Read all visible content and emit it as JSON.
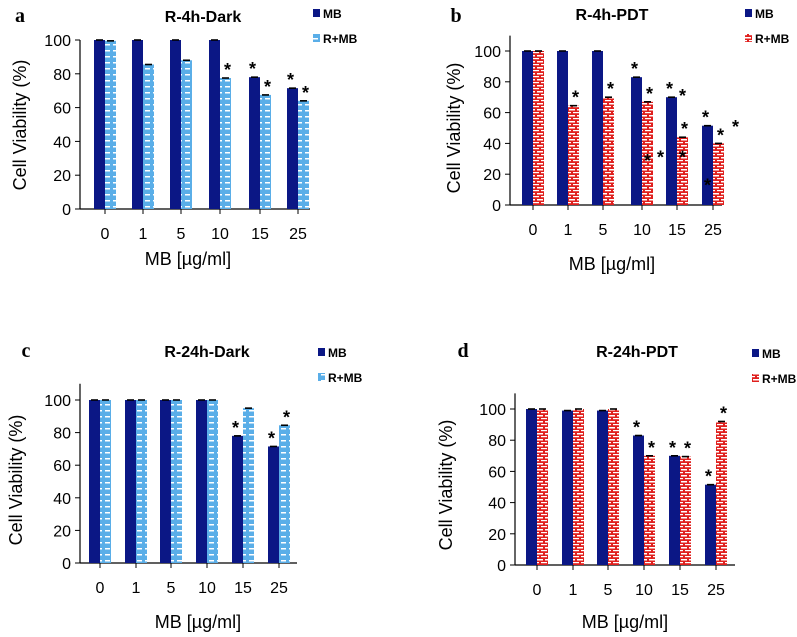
{
  "chart_data": [
    {
      "type": "bar",
      "panel": "a",
      "title": "R-4h-Dark",
      "xlabel": "MB [µg/ml]",
      "ylabel": "Cell Viability (%)",
      "ylim": [
        0,
        100
      ],
      "yticks": [
        0,
        20,
        40,
        60,
        80,
        100
      ],
      "categories": [
        "0",
        "1",
        "5",
        "10",
        "15",
        "25"
      ],
      "legend_position": "top-right",
      "series": [
        {
          "name": "MB",
          "color": "#0b1785",
          "pattern": "solid",
          "values": [
            100,
            100,
            100,
            100,
            78,
            71.5
          ],
          "significant": [
            false,
            false,
            false,
            false,
            true,
            true
          ]
        },
        {
          "name": "R+MB",
          "color": "#5aaee8",
          "pattern": "dashes",
          "values": [
            99.5,
            85.5,
            88,
            77.5,
            67.5,
            64
          ],
          "significant": [
            false,
            false,
            false,
            true,
            true,
            true
          ]
        }
      ],
      "extra_stars": []
    },
    {
      "type": "bar",
      "panel": "b",
      "title": "R-4h-PDT",
      "xlabel": "MB [µg/ml]",
      "ylabel": "Cell Viability (%)",
      "ylim": [
        0,
        110
      ],
      "yticks": [
        0,
        20,
        40,
        60,
        80,
        100
      ],
      "categories": [
        "0",
        "1",
        "5",
        "10",
        "15",
        "25"
      ],
      "legend_position": "top-right",
      "series": [
        {
          "name": "MB",
          "color": "#0b1785",
          "pattern": "solid",
          "values": [
            100,
            100,
            100,
            83,
            70,
            51.5
          ],
          "significant": [
            false,
            false,
            false,
            true,
            true,
            true
          ]
        },
        {
          "name": "R+MB",
          "color": "#e0201e",
          "pattern": "bricks",
          "values": [
            100,
            64.5,
            70,
            67,
            44,
            40
          ],
          "significant": [
            false,
            true,
            true,
            true,
            true,
            true
          ]
        }
      ],
      "extra_stars": [
        {
          "category": "10",
          "series": 1,
          "value": 30
        },
        {
          "category": "15",
          "series": 0,
          "value": 72,
          "side": -1
        },
        {
          "category": "15",
          "series": 0,
          "value": 32,
          "side": -1
        },
        {
          "category": "15",
          "series": 1,
          "value": 32
        },
        {
          "category": "25",
          "series": 0,
          "value": 14
        },
        {
          "category": "25",
          "series": 1,
          "value": 52,
          "side": -1
        }
      ]
    },
    {
      "type": "bar",
      "panel": "c",
      "title": "R-24h-Dark",
      "xlabel": "MB [µg/ml]",
      "ylabel": "Cell Viability (%)",
      "ylim": [
        0,
        110
      ],
      "yticks": [
        0,
        20,
        40,
        60,
        80,
        100
      ],
      "categories": [
        "0",
        "1",
        "5",
        "10",
        "15",
        "25"
      ],
      "legend_position": "top-right",
      "series": [
        {
          "name": "MB",
          "color": "#0b1785",
          "pattern": "solid",
          "values": [
            100,
            100,
            100,
            100,
            78,
            71.5
          ],
          "significant": [
            false,
            false,
            false,
            false,
            true,
            true
          ]
        },
        {
          "name": "R+MB",
          "color": "#5aaee8",
          "pattern": "dashes",
          "values": [
            100,
            100,
            100,
            100,
            95,
            84.5
          ],
          "significant": [
            false,
            false,
            false,
            false,
            false,
            true
          ]
        }
      ],
      "extra_stars": []
    },
    {
      "type": "bar",
      "panel": "d",
      "title": "R-24h-PDT",
      "xlabel": "MB [µg/ml]",
      "ylabel": "Cell Viability (%)",
      "ylim": [
        0,
        110
      ],
      "yticks": [
        0,
        20,
        40,
        60,
        80,
        100
      ],
      "categories": [
        "0",
        "1",
        "5",
        "10",
        "15",
        "25"
      ],
      "legend_position": "top-right",
      "series": [
        {
          "name": "MB",
          "color": "#0b1785",
          "pattern": "solid",
          "values": [
            100,
            99,
            99,
            83,
            70,
            51.5
          ],
          "significant": [
            false,
            false,
            false,
            true,
            true,
            true
          ]
        },
        {
          "name": "R+MB",
          "color": "#e0201e",
          "pattern": "bricks",
          "values": [
            100,
            100,
            100,
            70,
            69.5,
            92
          ],
          "significant": [
            false,
            false,
            false,
            true,
            true,
            true
          ]
        }
      ],
      "extra_stars": []
    }
  ],
  "star_symbol": "*"
}
